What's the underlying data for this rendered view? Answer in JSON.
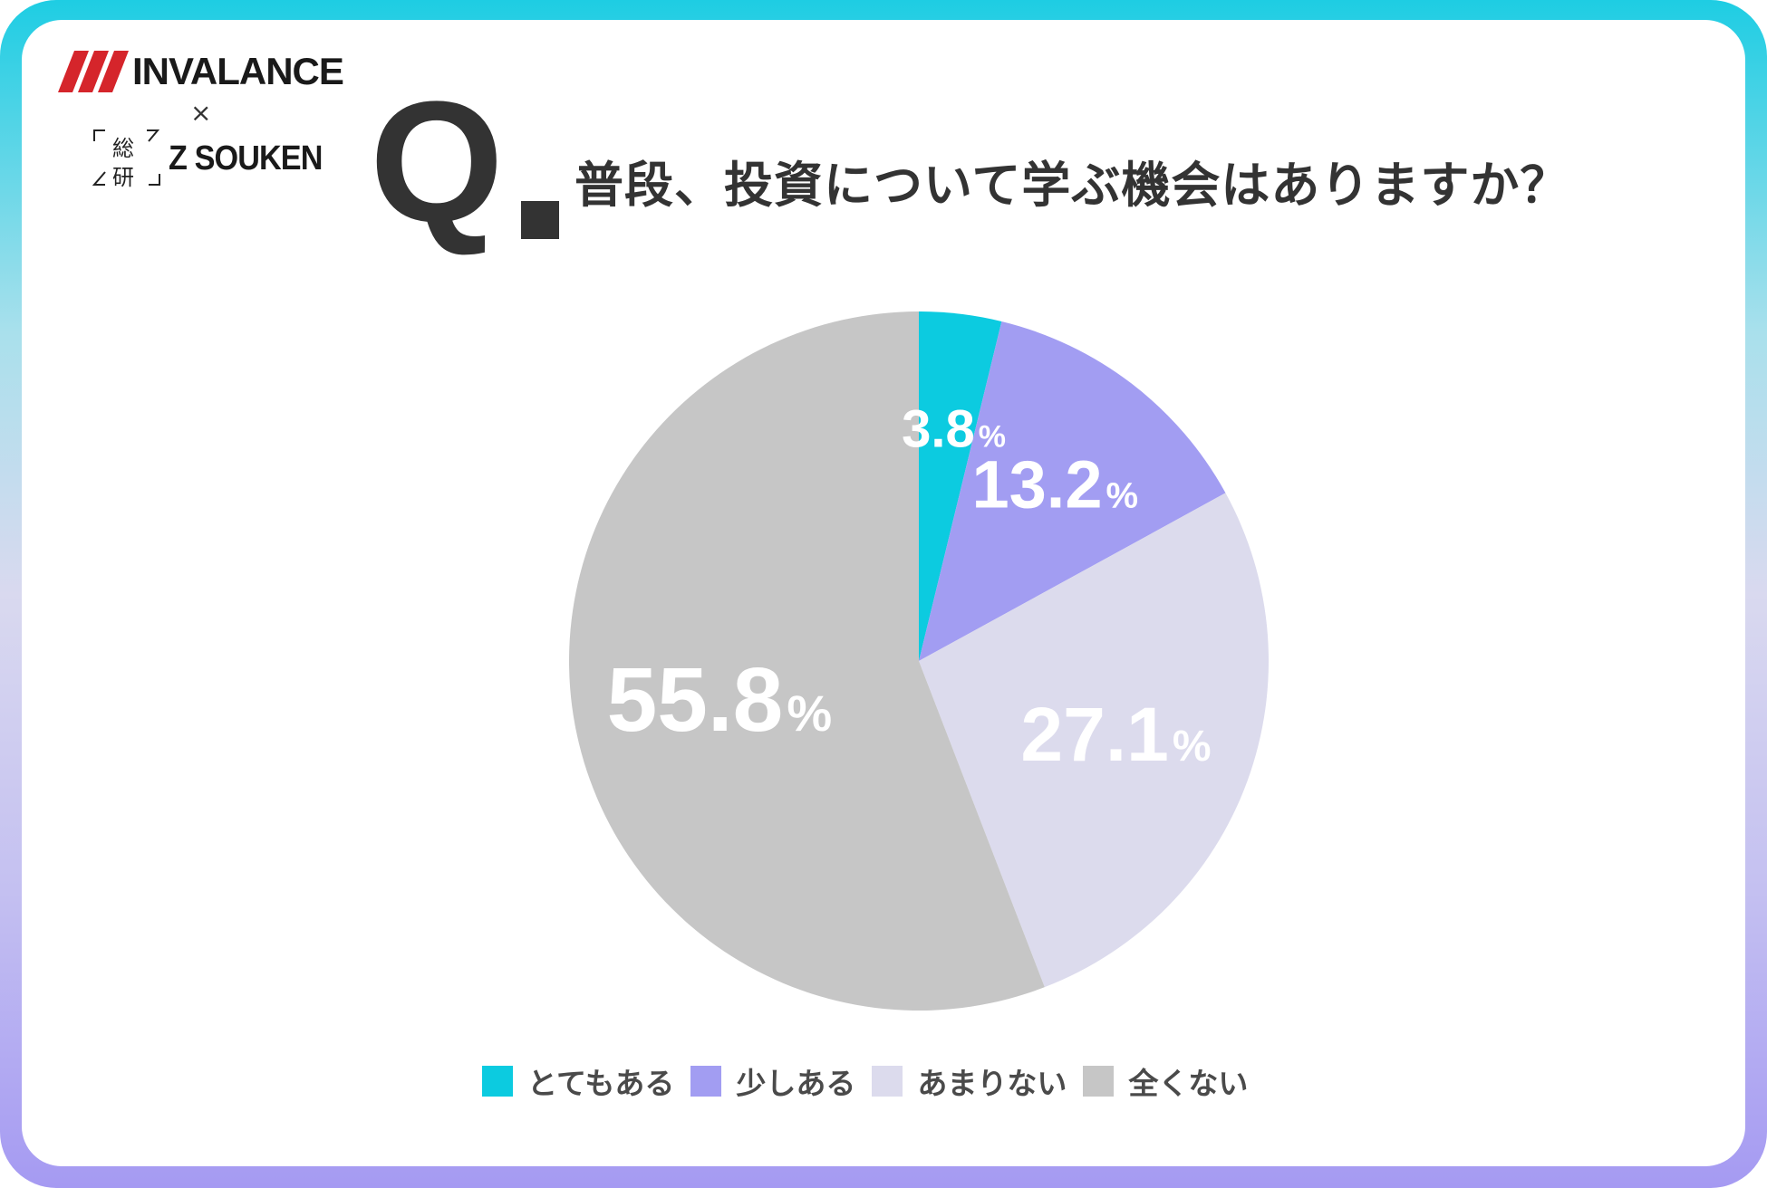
{
  "brand": {
    "invalance": "INVALANCE",
    "cross": "×",
    "zsouken_kanji_top": "総",
    "zsouken_kanji_bottom": "研",
    "zsouken": "Z SOUKEN",
    "stripe_color": "#d5252b"
  },
  "question": {
    "mark": "Q",
    "text": "普段、投資について学ぶ機会はありますか？"
  },
  "chart_data": {
    "type": "pie",
    "title": "普段、投資について学ぶ機会はありますか？",
    "unit": "%",
    "legend_position": "bottom",
    "slices": [
      {
        "label": "とてもある",
        "value": 3.8,
        "display": "3.8",
        "color": "#0ccbe0"
      },
      {
        "label": "少しある",
        "value": 13.2,
        "display": "13.2",
        "color": "#a29df2"
      },
      {
        "label": "あまりない",
        "value": 27.1,
        "display": "27.1",
        "color": "#dcdbed"
      },
      {
        "label": "全くない",
        "value": 55.8,
        "display": "55.8",
        "color": "#c6c6c6"
      }
    ]
  }
}
